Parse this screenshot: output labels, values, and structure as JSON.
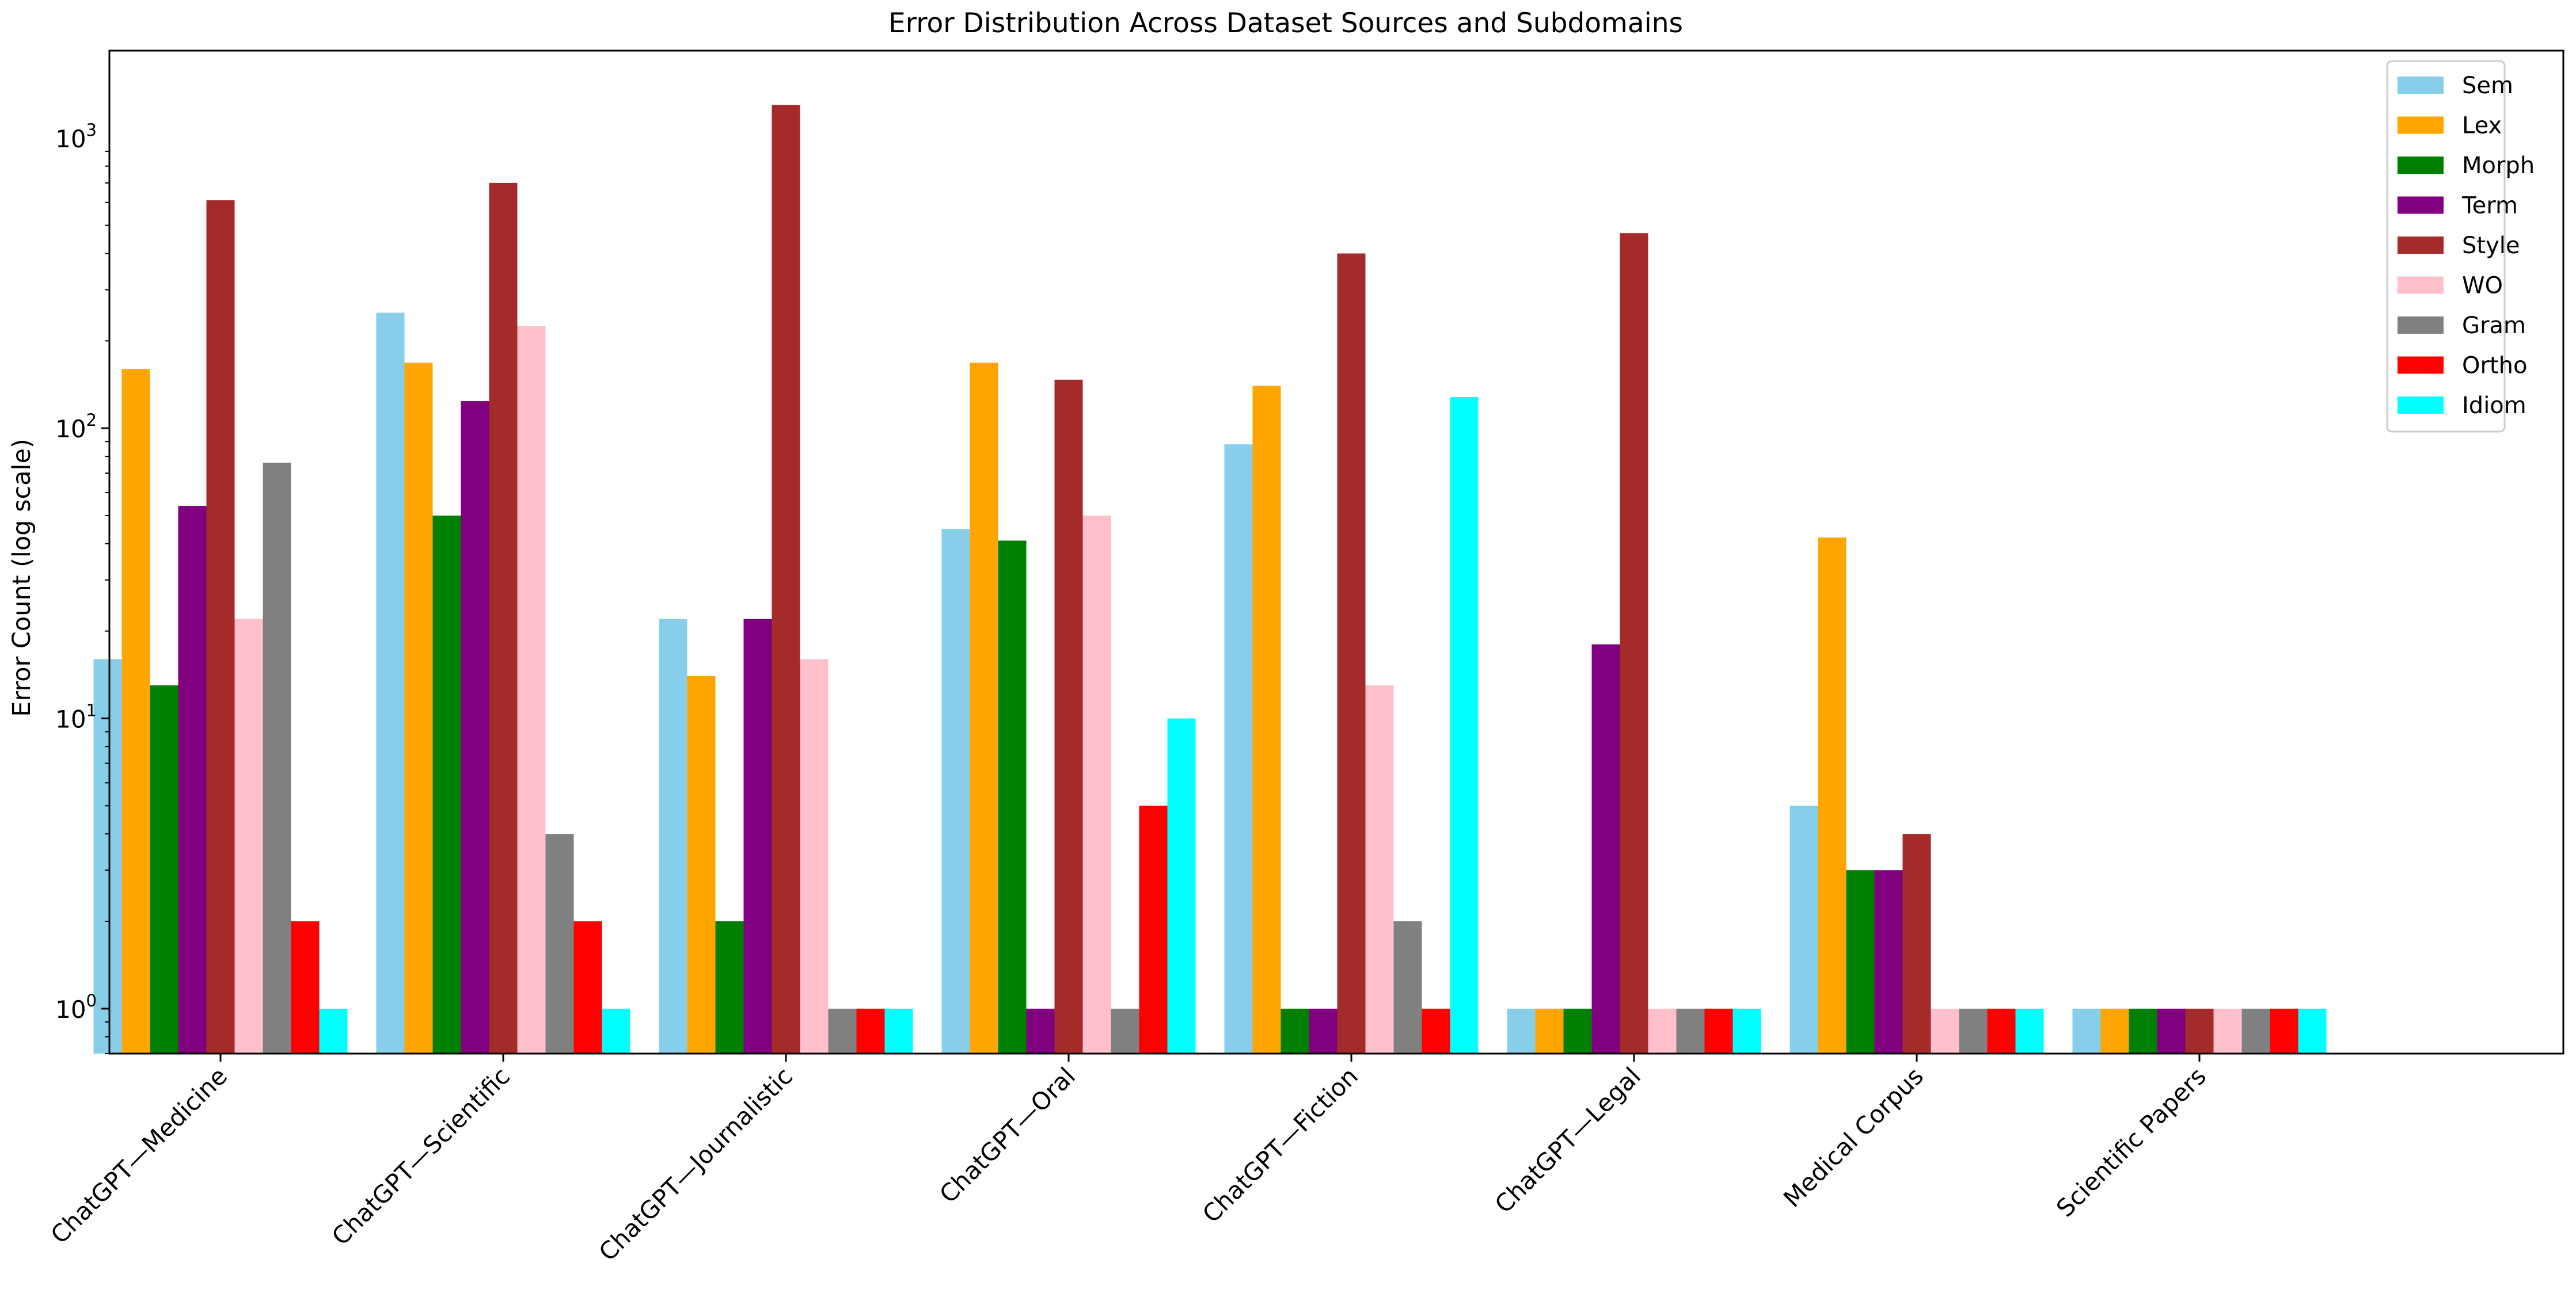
{
  "chart_data": {
    "type": "bar",
    "title": "Error Distribution Across Dataset Sources and Subdomains",
    "xlabel": "",
    "ylabel": "Error Count (log scale)",
    "yscale": "log",
    "ylim": [
      0.7,
      2000
    ],
    "yticks": [
      {
        "value": 1,
        "base": "10",
        "exp": "0"
      },
      {
        "value": 10,
        "base": "10",
        "exp": "1"
      },
      {
        "value": 100,
        "base": "10",
        "exp": "2"
      },
      {
        "value": 1000,
        "base": "10",
        "exp": "3"
      }
    ],
    "categories": [
      "ChatGPT—Medicine",
      "ChatGPT—Scientific",
      "ChatGPT—Journalistic",
      "ChatGPT—Oral",
      "ChatGPT—Fiction",
      "ChatGPT—Legal",
      "Medical Corpus",
      "Scientific Papers"
    ],
    "legend_position": "top-right",
    "series": [
      {
        "name": "Sem",
        "color": "#87ceeb",
        "values": [
          16,
          250,
          22,
          45,
          88,
          1,
          5,
          1
        ]
      },
      {
        "name": "Lex",
        "color": "#ffa500",
        "values": [
          160,
          168,
          14,
          168,
          140,
          1,
          42,
          1
        ]
      },
      {
        "name": "Morph",
        "color": "#008000",
        "values": [
          13,
          50,
          2,
          41,
          1,
          1,
          3,
          1
        ]
      },
      {
        "name": "Term",
        "color": "#800080",
        "values": [
          54,
          124,
          22,
          1,
          1,
          18,
          3,
          1
        ]
      },
      {
        "name": "Style",
        "color": "#a52a2a",
        "values": [
          610,
          700,
          1300,
          147,
          400,
          470,
          4,
          1
        ]
      },
      {
        "name": "WO",
        "color": "#ffc0cb",
        "values": [
          22,
          225,
          16,
          50,
          13,
          1,
          1,
          1
        ]
      },
      {
        "name": "Gram",
        "color": "#808080",
        "values": [
          76,
          4,
          1,
          1,
          2,
          1,
          1,
          1
        ]
      },
      {
        "name": "Ortho",
        "color": "#ff0000",
        "values": [
          2,
          2,
          1,
          5,
          1,
          1,
          1,
          1
        ]
      },
      {
        "name": "Idiom",
        "color": "#00ffff",
        "values": [
          1,
          1,
          1,
          10,
          128,
          1,
          1,
          1
        ]
      }
    ]
  }
}
